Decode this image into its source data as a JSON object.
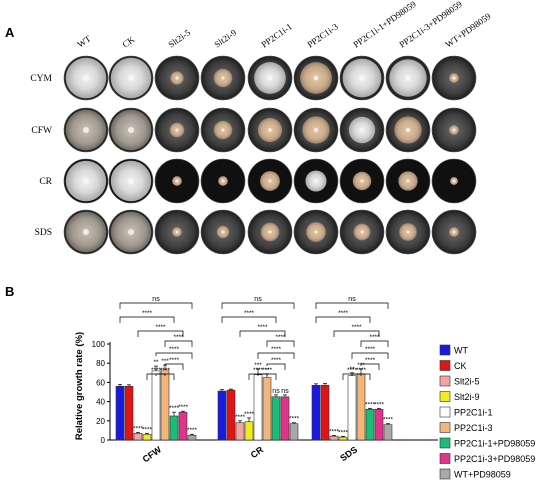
{
  "panel_a": {
    "label": "A",
    "strains": [
      "WT",
      "CK",
      "Slt2i-5",
      "Slt2i-9",
      "PP2C1i-1",
      "PP2C1i-3",
      "PP2C1i-1+PD98059",
      "PP2C1i-3+PD98059",
      "WT+PD98059"
    ],
    "media": [
      "CYM",
      "CFW",
      "CR",
      "SDS"
    ],
    "colony_ratio": [
      [
        0.92,
        0.92,
        0.3,
        0.42,
        0.72,
        0.72,
        0.88,
        0.85,
        0.22
      ],
      [
        0.92,
        0.92,
        0.33,
        0.42,
        0.55,
        0.62,
        0.6,
        0.62,
        0.22
      ],
      [
        0.92,
        0.92,
        0.22,
        0.22,
        0.45,
        0.48,
        0.42,
        0.44,
        0.18
      ],
      [
        0.92,
        0.92,
        0.22,
        0.28,
        0.42,
        0.45,
        0.38,
        0.4,
        0.22
      ]
    ]
  },
  "panel_b": {
    "label": "B"
  },
  "chart_data": {
    "type": "bar",
    "categories": [
      "CFW",
      "CR",
      "SDS"
    ],
    "ylabel": "Relative growth rate (%)",
    "ylim": [
      0,
      100
    ],
    "yticks": [
      "0",
      "20",
      "40",
      "60",
      "80",
      "100"
    ],
    "grid": false,
    "legend_position": "right",
    "series": [
      {
        "name": "WT",
        "color": "#1a1ae0",
        "values": [
          56,
          51,
          57
        ],
        "errors": [
          2,
          1.5,
          1.5
        ],
        "sig": [
          "",
          "",
          ""
        ]
      },
      {
        "name": "CK",
        "color": "#e01414",
        "values": [
          56,
          52,
          57
        ],
        "errors": [
          1.5,
          1,
          2
        ],
        "sig": [
          "",
          "",
          ""
        ]
      },
      {
        "name": "Slt2i-5",
        "color": "#f4a3a3",
        "values": [
          7,
          18,
          4
        ],
        "errors": [
          1,
          2,
          0.8
        ],
        "sig": [
          "****",
          "****",
          "****"
        ]
      },
      {
        "name": "Slt2i-9",
        "color": "#f2ea1e",
        "values": [
          6,
          19,
          3
        ],
        "errors": [
          1,
          4,
          0.8
        ],
        "sig": [
          "****",
          "****",
          "****"
        ]
      },
      {
        "name": "PP2C1i-1",
        "color": "#ffffff",
        "values": [
          72,
          68,
          67
        ],
        "errors": [
          5,
          6,
          3
        ],
        "sig": [
          "**",
          "***",
          "**"
        ]
      },
      {
        "name": "PP2C1i-3",
        "color": "#f4b57a",
        "values": [
          73,
          65,
          69
        ],
        "errors": [
          5,
          4,
          5
        ],
        "sig": [
          "***",
          "**",
          "***"
        ]
      },
      {
        "name": "PP2C1i-1+PD98059",
        "color": "#1abc78",
        "values": [
          25,
          45,
          32
        ],
        "errors": [
          4,
          2,
          1
        ],
        "sig": [
          "****",
          "ns",
          "****"
        ]
      },
      {
        "name": "PP2C1i-3+PD98059",
        "color": "#e0338a",
        "values": [
          29,
          45,
          32
        ],
        "errors": [
          1,
          2,
          1
        ],
        "sig": [
          "****",
          "ns",
          "****"
        ]
      },
      {
        "name": "WT+PD98059",
        "color": "#a8a8a8",
        "values": [
          5,
          17,
          16
        ],
        "errors": [
          1,
          1,
          1
        ],
        "sig": [
          "****",
          "****",
          "****"
        ]
      }
    ],
    "brackets": [
      {
        "from": 0,
        "to": 8,
        "label": "ns"
      },
      {
        "from": 0,
        "to": 6,
        "label": "****"
      },
      {
        "from": 2,
        "to": 7,
        "label": "****"
      },
      {
        "from": 5,
        "to": 8,
        "label": "****"
      },
      {
        "from": 4,
        "to": 8,
        "label": "****"
      },
      {
        "from": 5,
        "to": 7,
        "label": "****"
      },
      {
        "from": 3,
        "to": 5,
        "label": "****"
      },
      {
        "from": 4,
        "to": 6,
        "label": "****"
      }
    ]
  }
}
